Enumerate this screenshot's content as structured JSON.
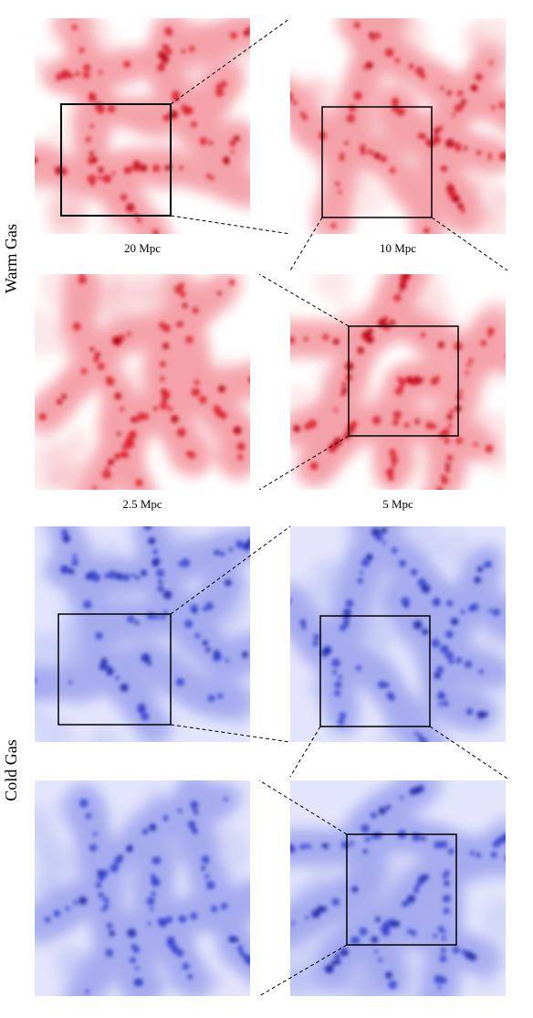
{
  "sections": [
    {
      "label": "Warm Gas",
      "palette": {
        "light": "#fde8ea",
        "mid": "#f4a2aa",
        "dark": "#dc1c2c",
        "core": "#b8000f"
      },
      "panels": [
        {
          "id": "warm-20",
          "caption": "20 Mpc",
          "zoom_box": true
        },
        {
          "id": "warm-10",
          "caption": "10 Mpc",
          "zoom_box": true
        },
        {
          "id": "warm-2_5",
          "caption": "2.5 Mpc",
          "zoom_box": false
        },
        {
          "id": "warm-5",
          "caption": "5 Mpc",
          "zoom_box": true
        }
      ]
    },
    {
      "label": "Cold Gas",
      "palette": {
        "light": "#e2e5fb",
        "mid": "#a5acee",
        "dark": "#3a44d0",
        "core": "#1c24a8"
      },
      "panels": [
        {
          "id": "cold-20",
          "caption": "",
          "zoom_box": true
        },
        {
          "id": "cold-10",
          "caption": "",
          "zoom_box": true
        },
        {
          "id": "cold-2_5",
          "caption": "",
          "zoom_box": false
        },
        {
          "id": "cold-5",
          "caption": "",
          "zoom_box": true
        }
      ]
    }
  ]
}
